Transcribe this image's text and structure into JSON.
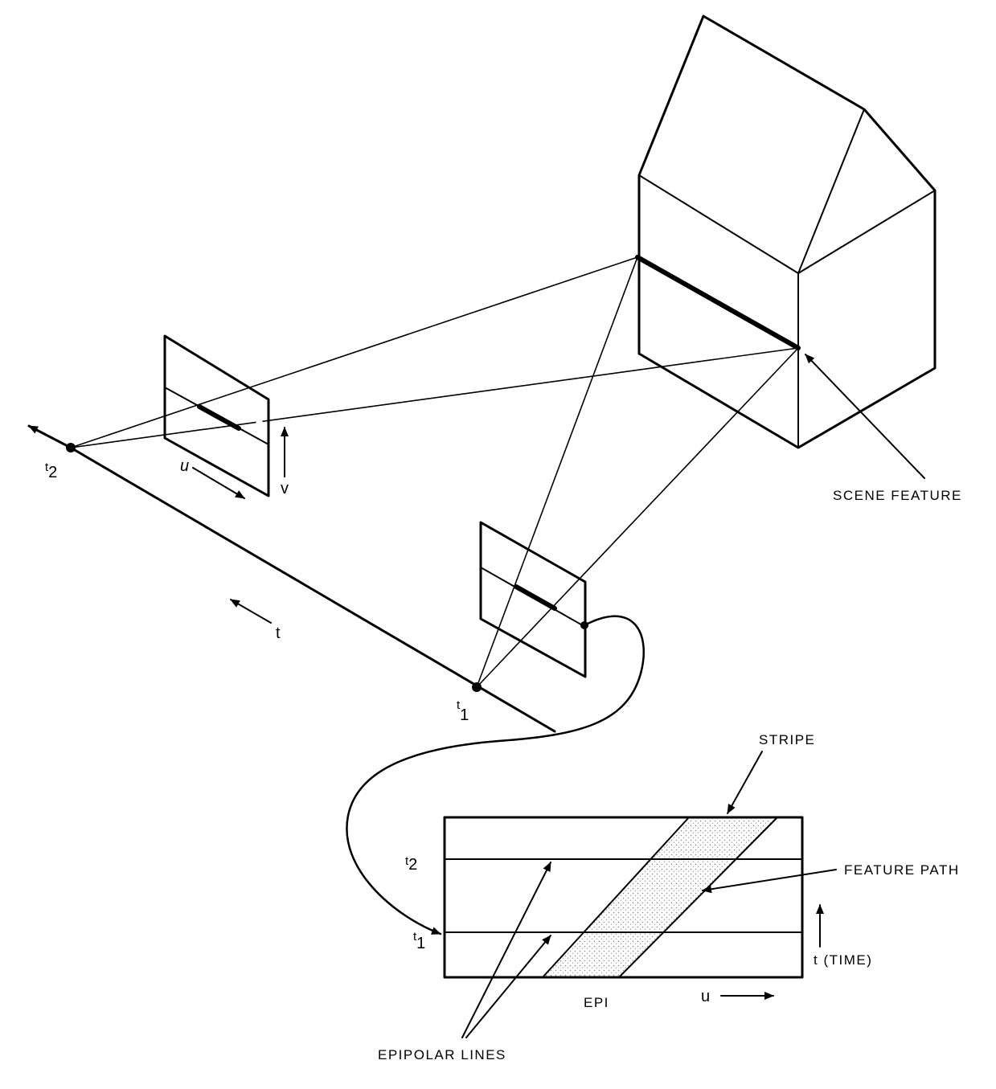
{
  "labels": {
    "scene_feature": "SCENE FEATURE",
    "stripe": "STRIPE",
    "feature_path": "FEATURE PATH",
    "epipolar_lines": "EPIPOLAR LINES",
    "epi": "EPI",
    "time_axis": "t (TIME)",
    "u_axis_epi": "u",
    "u_axis_image": "u",
    "v_axis": "v",
    "t_motion": "t",
    "t_symbol": "t",
    "sub_1": "1",
    "sub_2": "2"
  },
  "colors": {
    "ink": "#000000",
    "paper": "#ffffff",
    "stipple": "#8a8a8a"
  }
}
